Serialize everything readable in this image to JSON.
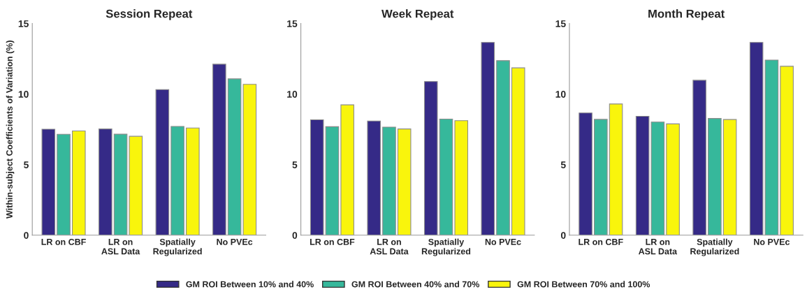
{
  "chart_data": [
    {
      "type": "bar",
      "title": "Session Repeat",
      "ylabel": "Within-subject Coefficients of Variation (%)",
      "categories": [
        "LR on CBF",
        "LR on\nASL Data",
        "Spatially\nRegularized",
        "No PVEc"
      ],
      "ylim": [
        0,
        15
      ],
      "yticks": [
        0,
        5,
        10,
        15
      ],
      "grid": false,
      "legend": "bottom",
      "series": [
        {
          "name": "GM ROI Between 10% and 40%",
          "color": "#352a87",
          "values": [
            7.51,
            7.53,
            10.32,
            12.12
          ]
        },
        {
          "name": "GM ROI Between 40% and 70%",
          "color": "#36b89b",
          "values": [
            7.15,
            7.16,
            7.71,
            11.08
          ]
        },
        {
          "name": "GM ROI Between 70% and 100%",
          "color": "#f9f50c",
          "values": [
            7.39,
            7.01,
            7.6,
            10.69
          ]
        }
      ]
    },
    {
      "type": "bar",
      "title": "Week Repeat",
      "categories": [
        "LR on CBF",
        "LR on\nASL Data",
        "Spatially\nRegularized",
        "No PVEc"
      ],
      "ylim": [
        0,
        15
      ],
      "yticks": [
        0,
        5,
        10,
        15
      ],
      "grid": false,
      "series": [
        {
          "color": "#352a87",
          "values": [
            8.18,
            8.09,
            10.89,
            13.66
          ]
        },
        {
          "color": "#36b89b",
          "values": [
            7.69,
            7.66,
            8.23,
            12.37
          ]
        },
        {
          "color": "#f9f50c",
          "values": [
            9.24,
            7.53,
            8.12,
            11.86
          ]
        }
      ]
    },
    {
      "type": "bar",
      "title": "Month Repeat",
      "categories": [
        "LR on CBF",
        "LR on\nASL Data",
        "Spatially\nRegularized",
        "No PVEc"
      ],
      "ylim": [
        0,
        15
      ],
      "yticks": [
        0,
        5,
        10,
        15
      ],
      "grid": false,
      "series": [
        {
          "color": "#352a87",
          "values": [
            8.66,
            8.43,
            10.98,
            13.66
          ]
        },
        {
          "color": "#36b89b",
          "values": [
            8.21,
            8.02,
            8.27,
            12.41
          ]
        },
        {
          "color": "#f9f50c",
          "values": [
            9.3,
            7.89,
            8.2,
            11.97
          ]
        }
      ]
    }
  ]
}
